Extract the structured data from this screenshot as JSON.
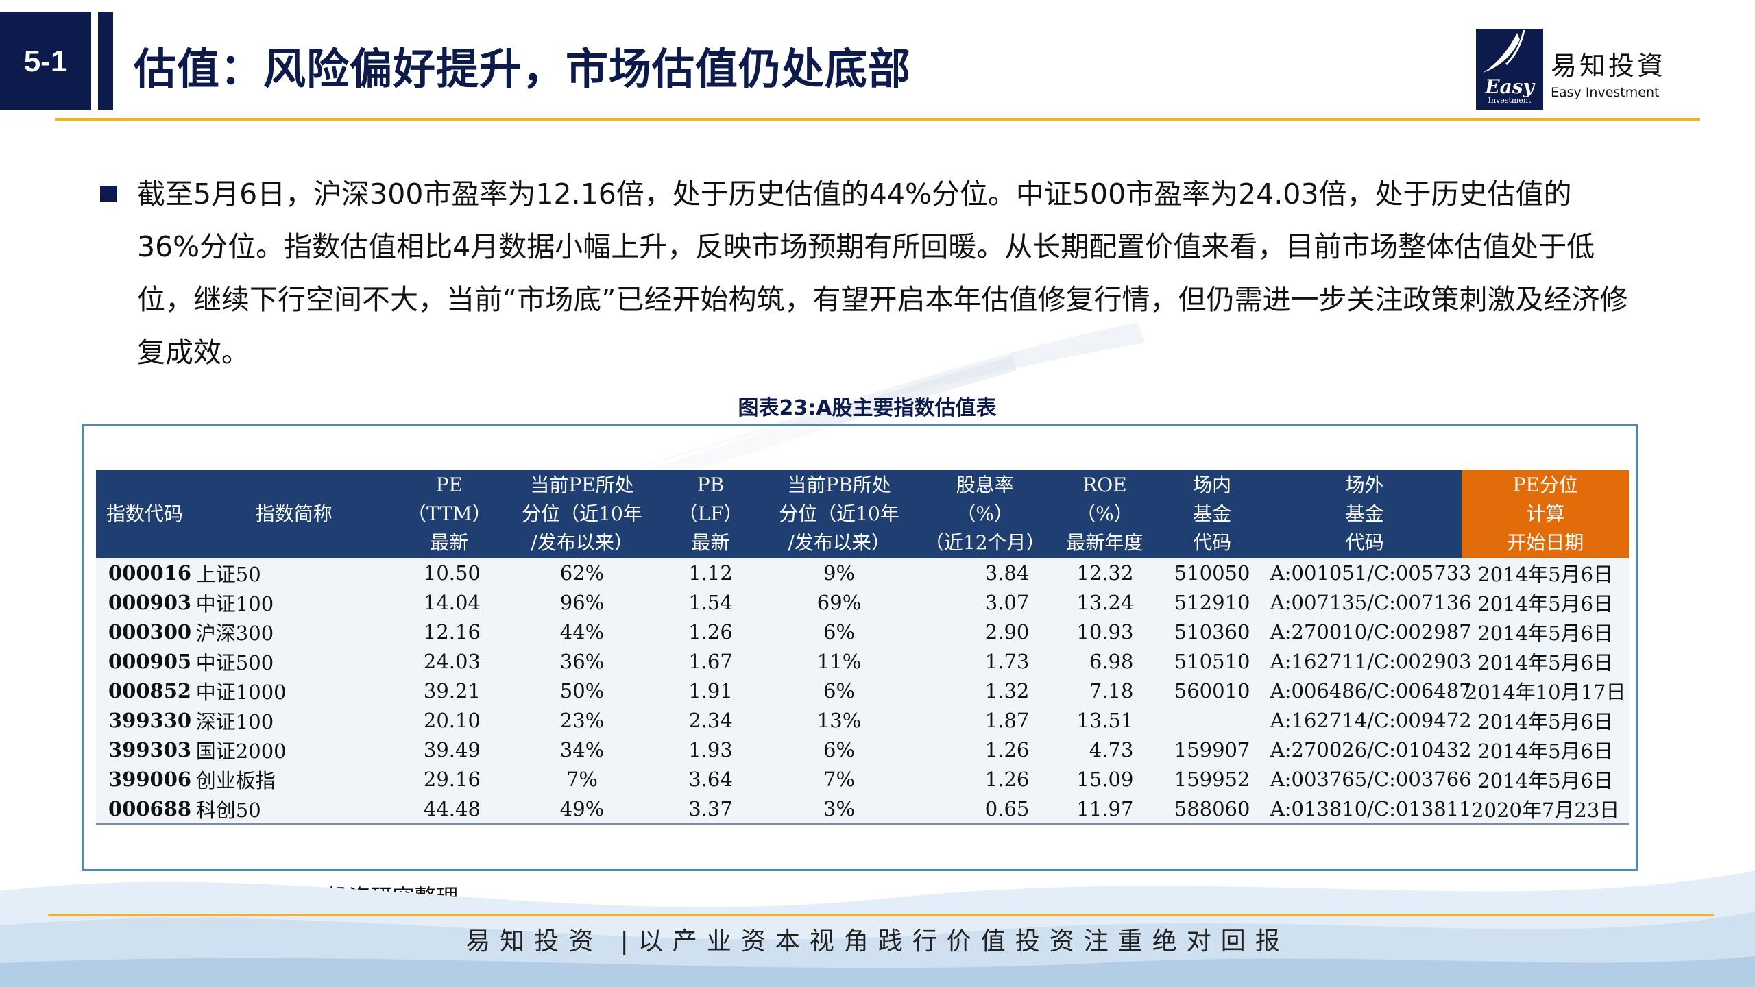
{
  "header": {
    "section_number": "5-1",
    "title": "估值：风险偏好提升，市场估值仍处底部",
    "logo": {
      "mark_text": "Easy",
      "mark_subtext": "Investment",
      "name_cn": "易知投資",
      "name_en": "Easy Investment"
    }
  },
  "summary": {
    "text": "截至5月6日，沪深300市盈率为12.16倍，处于历史估值的44%分位。中证500市盈率为24.03倍，处于历史估值的36%分位。指数估值相比4月数据小幅上升，反映市场预期有所回暖。从长期配置价值来看，目前市场整体估值处于低位，继续下行空间不大，当前“市场底”已经开始构筑，有望开启本年估值修复行情，但仍需进一步关注政策刺激及经济修复成效。"
  },
  "chart": {
    "caption": "图表23:A股主要指数估值表",
    "columns": [
      {
        "lines": [
          "指数代码"
        ]
      },
      {
        "lines": [
          "指数简称"
        ]
      },
      {
        "lines": [
          "PE",
          "（TTM）",
          "最新"
        ]
      },
      {
        "lines": [
          "当前PE所处",
          "分位（近10年",
          "/发布以来）"
        ]
      },
      {
        "lines": [
          "PB",
          "（LF）",
          "最新"
        ]
      },
      {
        "lines": [
          "当前PB所处",
          "分位（近10年",
          "/发布以来）"
        ]
      },
      {
        "lines": [
          "股息率",
          "（%）",
          "（近12个月）"
        ]
      },
      {
        "lines": [
          "ROE",
          "（%）",
          "最新年度"
        ]
      },
      {
        "lines": [
          "场内",
          "基金",
          "代码"
        ]
      },
      {
        "lines": [
          "场外",
          "基金",
          "代码"
        ]
      },
      {
        "lines": [
          "PE分位",
          "计算",
          "开始日期"
        ]
      }
    ],
    "rows": [
      [
        "000016",
        "上证50",
        "10.50",
        "62%",
        "1.12",
        "9%",
        "3.84",
        "12.32",
        "510050",
        "A:001051/C:005733",
        "2014年5月6日"
      ],
      [
        "000903",
        "中证100",
        "14.04",
        "96%",
        "1.54",
        "69%",
        "3.07",
        "13.24",
        "512910",
        "A:007135/C:007136",
        "2014年5月6日"
      ],
      [
        "000300",
        "沪深300",
        "12.16",
        "44%",
        "1.26",
        "6%",
        "2.90",
        "10.93",
        "510360",
        "A:270010/C:002987",
        "2014年5月6日"
      ],
      [
        "000905",
        "中证500",
        "24.03",
        "36%",
        "1.67",
        "11%",
        "1.73",
        "6.98",
        "510510",
        "A:162711/C:002903",
        "2014年5月6日"
      ],
      [
        "000852",
        "中证1000",
        "39.21",
        "50%",
        "1.91",
        "6%",
        "1.32",
        "7.18",
        "560010",
        "A:006486/C:006487",
        "2014年10月17日"
      ],
      [
        "399330",
        "深证100",
        "20.10",
        "23%",
        "2.34",
        "13%",
        "1.87",
        "13.51",
        "",
        "A:162714/C:009472",
        "2014年5月6日"
      ],
      [
        "399303",
        "国证2000",
        "39.49",
        "34%",
        "1.93",
        "6%",
        "1.26",
        "4.73",
        "159907",
        "A:270026/C:010432",
        "2014年5月6日"
      ],
      [
        "399006",
        "创业板指",
        "29.16",
        "7%",
        "3.64",
        "7%",
        "1.26",
        "15.09",
        "159952",
        "A:003765/C:003766",
        "2014年5月6日"
      ],
      [
        "000688",
        "科创50",
        "44.48",
        "49%",
        "3.37",
        "3%",
        "0.65",
        "11.97",
        "588060",
        "A:013810/C:013811",
        "2020年7月23日"
      ]
    ],
    "source": "数据来源：Wind、易知投资研究整理"
  },
  "footer": {
    "slogan": "易知投资 |以产业资本视角践行价值投资注重绝对回报"
  },
  "colors": {
    "navy": "#0d1b4c",
    "gold": "#f0b323",
    "table_header": "#1f3f72",
    "accent_orange": "#e36c0a"
  }
}
